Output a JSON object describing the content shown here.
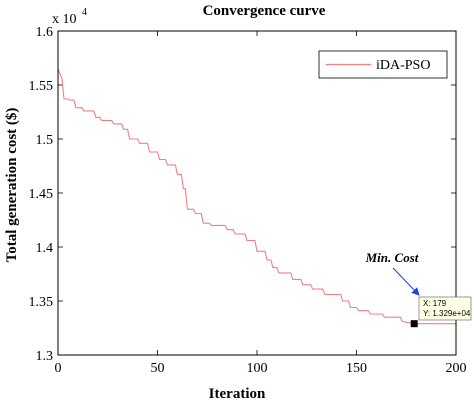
{
  "chart_data": {
    "type": "line",
    "title": "Convergence curve",
    "xlabel": "Iteration",
    "ylabel": "Total generation cost ($)",
    "xlim": [
      0,
      200
    ],
    "ylim": [
      13000,
      16000
    ],
    "xticks": [
      0,
      50,
      100,
      150,
      200
    ],
    "xtick_labels": [
      "0",
      "50",
      "100",
      "150",
      "200"
    ],
    "yticks": [
      13000,
      13500,
      14000,
      14500,
      15000,
      15500,
      16000
    ],
    "ytick_labels": [
      "1.3",
      "1.35",
      "1.4",
      "1.45",
      "1.5",
      "1.55",
      "1.6"
    ],
    "y_exponent_base": "x 10",
    "y_exponent_power": "4",
    "grid": false,
    "legend_position": "top-right",
    "series": [
      {
        "name": "iDA-PSO",
        "color": "#f08080",
        "points": [
          [
            0,
            15650
          ],
          [
            1,
            15600
          ],
          [
            2,
            15560
          ],
          [
            3,
            15370
          ],
          [
            5,
            15370
          ],
          [
            6,
            15360
          ],
          [
            8,
            15360
          ],
          [
            9,
            15290
          ],
          [
            12,
            15290
          ],
          [
            13,
            15260
          ],
          [
            18,
            15260
          ],
          [
            19,
            15200
          ],
          [
            21,
            15200
          ],
          [
            22,
            15170
          ],
          [
            27,
            15170
          ],
          [
            28,
            15140
          ],
          [
            32,
            15140
          ],
          [
            33,
            15090
          ],
          [
            35,
            15090
          ],
          [
            36,
            15000
          ],
          [
            40,
            15000
          ],
          [
            41,
            14960
          ],
          [
            45,
            14960
          ],
          [
            46,
            14880
          ],
          [
            50,
            14880
          ],
          [
            51,
            14810
          ],
          [
            54,
            14810
          ],
          [
            55,
            14760
          ],
          [
            59,
            14760
          ],
          [
            60,
            14670
          ],
          [
            62,
            14670
          ],
          [
            63,
            14540
          ],
          [
            64,
            14540
          ],
          [
            65,
            14350
          ],
          [
            68,
            14350
          ],
          [
            69,
            14310
          ],
          [
            72,
            14310
          ],
          [
            73,
            14220
          ],
          [
            76,
            14220
          ],
          [
            77,
            14200
          ],
          [
            84,
            14200
          ],
          [
            85,
            14160
          ],
          [
            88,
            14160
          ],
          [
            89,
            14120
          ],
          [
            94,
            14120
          ],
          [
            95,
            14060
          ],
          [
            99,
            14060
          ],
          [
            100,
            13960
          ],
          [
            104,
            13960
          ],
          [
            105,
            13880
          ],
          [
            107,
            13880
          ],
          [
            108,
            13810
          ],
          [
            110,
            13810
          ],
          [
            111,
            13760
          ],
          [
            117,
            13760
          ],
          [
            118,
            13700
          ],
          [
            122,
            13700
          ],
          [
            123,
            13650
          ],
          [
            127,
            13650
          ],
          [
            128,
            13610
          ],
          [
            133,
            13610
          ],
          [
            134,
            13560
          ],
          [
            142,
            13560
          ],
          [
            143,
            13500
          ],
          [
            146,
            13500
          ],
          [
            147,
            13440
          ],
          [
            150,
            13440
          ],
          [
            151,
            13410
          ],
          [
            156,
            13410
          ],
          [
            157,
            13380
          ],
          [
            163,
            13380
          ],
          [
            164,
            13350
          ],
          [
            172,
            13350
          ],
          [
            173,
            13310
          ],
          [
            179,
            13290
          ],
          [
            200,
            13290
          ]
        ]
      }
    ],
    "annotation": {
      "label": "Min. Cost",
      "marker_x": 179,
      "marker_y": 13290,
      "tooltip_x": "X: 179",
      "tooltip_y": "Y: 1.329e+04"
    }
  }
}
